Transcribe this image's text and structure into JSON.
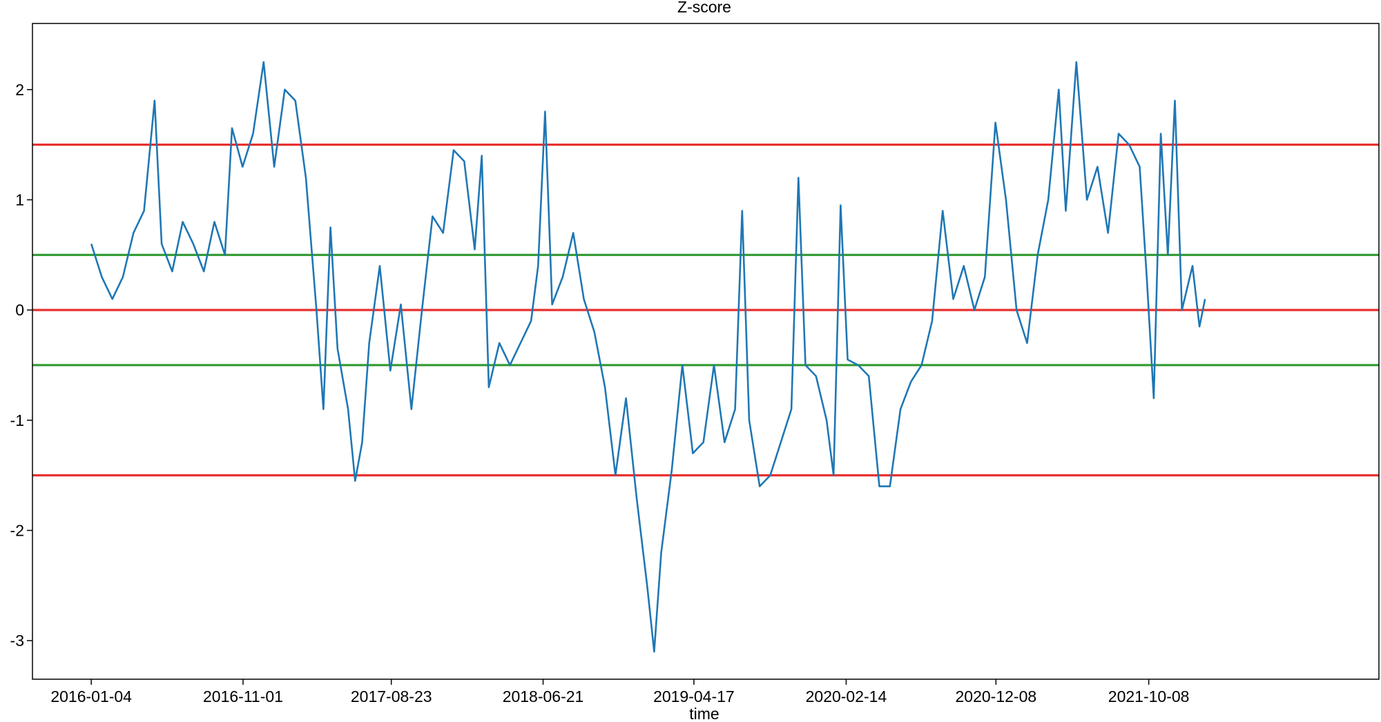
{
  "chart_data": {
    "type": "line",
    "title": "Z-score",
    "xlabel": "time",
    "ylabel": "",
    "ylim": [
      -3.35,
      2.6
    ],
    "xlim": [
      "2015-09-09",
      "2023-01-09"
    ],
    "grid": false,
    "x_ticks": [
      "2016-01-04",
      "2016-11-01",
      "2017-08-23",
      "2018-06-21",
      "2019-04-17",
      "2020-02-14",
      "2020-12-08",
      "2021-10-08"
    ],
    "y_ticks": [
      -3,
      -2,
      -1,
      0,
      1,
      2
    ],
    "y_tick_labels": [
      "-3",
      "-2",
      "-1",
      "0",
      "1",
      "2"
    ],
    "reference_lines": [
      {
        "y": 1.5,
        "color": "#e8312f"
      },
      {
        "y": 0.5,
        "color": "#2e9a2e"
      },
      {
        "y": 0,
        "color": "#e8312f"
      },
      {
        "y": -0.5,
        "color": "#2e9a2e"
      },
      {
        "y": -1.5,
        "color": "#e8312f"
      }
    ],
    "series": [
      {
        "color": "#1f77b4",
        "points": [
          [
            "2016-01-04",
            0.6
          ],
          [
            "2016-01-25",
            0.3
          ],
          [
            "2016-02-15",
            0.1
          ],
          [
            "2016-03-07",
            0.3
          ],
          [
            "2016-03-28",
            0.7
          ],
          [
            "2016-04-18",
            0.9
          ],
          [
            "2016-05-09",
            1.9
          ],
          [
            "2016-05-23",
            0.6
          ],
          [
            "2016-06-13",
            0.35
          ],
          [
            "2016-07-04",
            0.8
          ],
          [
            "2016-07-25",
            0.6
          ],
          [
            "2016-08-15",
            0.35
          ],
          [
            "2016-09-05",
            0.8
          ],
          [
            "2016-09-26",
            0.5
          ],
          [
            "2016-10-10",
            1.65
          ],
          [
            "2016-10-31",
            1.3
          ],
          [
            "2016-11-21",
            1.6
          ],
          [
            "2016-12-12",
            2.25
          ],
          [
            "2017-01-02",
            1.3
          ],
          [
            "2017-01-23",
            2.0
          ],
          [
            "2017-02-13",
            1.9
          ],
          [
            "2017-03-06",
            1.2
          ],
          [
            "2017-03-27",
            0.0
          ],
          [
            "2017-04-10",
            -0.9
          ],
          [
            "2017-04-24",
            0.75
          ],
          [
            "2017-05-08",
            -0.35
          ],
          [
            "2017-05-29",
            -0.9
          ],
          [
            "2017-06-12",
            -1.55
          ],
          [
            "2017-06-26",
            -1.2
          ],
          [
            "2017-07-10",
            -0.3
          ],
          [
            "2017-07-31",
            0.4
          ],
          [
            "2017-08-21",
            -0.55
          ],
          [
            "2017-09-11",
            0.05
          ],
          [
            "2017-10-02",
            -0.9
          ],
          [
            "2017-10-23",
            0.0
          ],
          [
            "2017-11-13",
            0.85
          ],
          [
            "2017-12-04",
            0.7
          ],
          [
            "2017-12-25",
            1.45
          ],
          [
            "2018-01-15",
            1.35
          ],
          [
            "2018-02-05",
            0.55
          ],
          [
            "2018-02-19",
            1.4
          ],
          [
            "2018-03-05",
            -0.7
          ],
          [
            "2018-03-26",
            -0.3
          ],
          [
            "2018-04-16",
            -0.5
          ],
          [
            "2018-05-07",
            -0.3
          ],
          [
            "2018-05-28",
            -0.1
          ],
          [
            "2018-06-11",
            0.4
          ],
          [
            "2018-06-25",
            1.8
          ],
          [
            "2018-07-09",
            0.05
          ],
          [
            "2018-07-30",
            0.3
          ],
          [
            "2018-08-20",
            0.7
          ],
          [
            "2018-09-10",
            0.1
          ],
          [
            "2018-10-01",
            -0.2
          ],
          [
            "2018-10-22",
            -0.7
          ],
          [
            "2018-11-12",
            -1.5
          ],
          [
            "2018-12-03",
            -0.8
          ],
          [
            "2018-12-24",
            -1.7
          ],
          [
            "2019-01-14",
            -2.5
          ],
          [
            "2019-01-28",
            -3.1
          ],
          [
            "2019-02-11",
            -2.2
          ],
          [
            "2019-03-04",
            -1.45
          ],
          [
            "2019-03-25",
            -0.5
          ],
          [
            "2019-04-15",
            -1.3
          ],
          [
            "2019-05-06",
            -1.2
          ],
          [
            "2019-05-27",
            -0.5
          ],
          [
            "2019-06-17",
            -1.2
          ],
          [
            "2019-07-08",
            -0.9
          ],
          [
            "2019-07-22",
            0.9
          ],
          [
            "2019-08-05",
            -1.0
          ],
          [
            "2019-08-26",
            -1.6
          ],
          [
            "2019-09-16",
            -1.5
          ],
          [
            "2019-10-07",
            -1.2
          ],
          [
            "2019-10-28",
            -0.9
          ],
          [
            "2019-11-11",
            1.2
          ],
          [
            "2019-11-25",
            -0.5
          ],
          [
            "2019-12-16",
            -0.6
          ],
          [
            "2020-01-06",
            -1.0
          ],
          [
            "2020-01-20",
            -1.5
          ],
          [
            "2020-02-03",
            0.95
          ],
          [
            "2020-02-17",
            -0.45
          ],
          [
            "2020-03-09",
            -0.5
          ],
          [
            "2020-03-30",
            -0.6
          ],
          [
            "2020-04-20",
            -1.6
          ],
          [
            "2020-05-11",
            -1.6
          ],
          [
            "2020-06-01",
            -0.9
          ],
          [
            "2020-06-22",
            -0.65
          ],
          [
            "2020-07-13",
            -0.5
          ],
          [
            "2020-08-03",
            -0.1
          ],
          [
            "2020-08-24",
            0.9
          ],
          [
            "2020-09-14",
            0.1
          ],
          [
            "2020-10-05",
            0.4
          ],
          [
            "2020-10-26",
            0.0
          ],
          [
            "2020-11-16",
            0.3
          ],
          [
            "2020-12-07",
            1.7
          ],
          [
            "2020-12-28",
            1.0
          ],
          [
            "2021-01-18",
            0.0
          ],
          [
            "2021-02-08",
            -0.3
          ],
          [
            "2021-03-01",
            0.5
          ],
          [
            "2021-03-22",
            1.0
          ],
          [
            "2021-04-12",
            2.0
          ],
          [
            "2021-04-26",
            0.9
          ],
          [
            "2021-05-17",
            2.25
          ],
          [
            "2021-06-07",
            1.0
          ],
          [
            "2021-06-28",
            1.3
          ],
          [
            "2021-07-19",
            0.7
          ],
          [
            "2021-08-09",
            1.6
          ],
          [
            "2021-08-30",
            1.5
          ],
          [
            "2021-09-20",
            1.3
          ],
          [
            "2021-10-04",
            0.3
          ],
          [
            "2021-10-18",
            -0.8
          ],
          [
            "2021-11-01",
            1.6
          ],
          [
            "2021-11-15",
            0.5
          ],
          [
            "2021-11-29",
            1.9
          ],
          [
            "2021-12-13",
            0.0
          ],
          [
            "2022-01-03",
            0.4
          ],
          [
            "2022-01-17",
            -0.15
          ],
          [
            "2022-01-28",
            0.1
          ]
        ]
      }
    ]
  }
}
